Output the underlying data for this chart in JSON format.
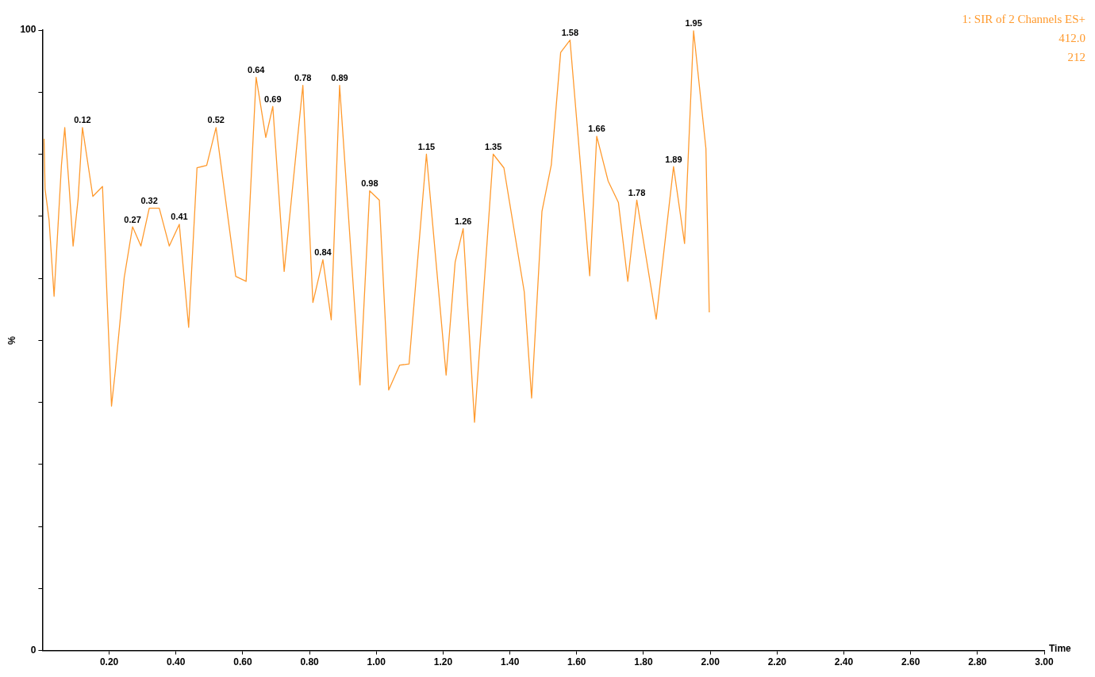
{
  "chart_data": {
    "type": "line",
    "ylabel": "%",
    "xlabel": "Time",
    "annotations": [
      "1: SIR of 2 Channels ES+",
      "412.0",
      "212",
      {
        "text": "0.12",
        "x": 0.12,
        "y": 84.3
      },
      {
        "text": "0.27",
        "x": 0.27,
        "y": 68.3
      },
      {
        "text": "0.32",
        "x": 0.32,
        "y": 71.3
      },
      {
        "text": "0.41",
        "x": 0.41,
        "y": 68.7
      },
      {
        "text": "0.52",
        "x": 0.52,
        "y": 84.3
      },
      {
        "text": "0.64",
        "x": 0.64,
        "y": 92.4
      },
      {
        "text": "0.69",
        "x": 0.69,
        "y": 87.7
      },
      {
        "text": "0.78",
        "x": 0.78,
        "y": 91.1
      },
      {
        "text": "0.84",
        "x": 0.84,
        "y": 63
      },
      {
        "text": "0.89",
        "x": 0.89,
        "y": 91.1
      },
      {
        "text": "0.98",
        "x": 0.98,
        "y": 74.1
      },
      {
        "text": "1.15",
        "x": 1.15,
        "y": 80
      },
      {
        "text": "1.26",
        "x": 1.26,
        "y": 68
      },
      {
        "text": "1.35",
        "x": 1.35,
        "y": 80
      },
      {
        "text": "1.58",
        "x": 1.58,
        "y": 98.4
      },
      {
        "text": "1.66",
        "x": 1.66,
        "y": 82.9
      },
      {
        "text": "1.78",
        "x": 1.78,
        "y": 72.6
      },
      {
        "text": "1.89",
        "x": 1.89,
        "y": 78
      },
      {
        "text": "1.95",
        "x": 1.95,
        "y": 99.9
      }
    ],
    "x": [
      0.005,
      0.008,
      0.02,
      0.035,
      0.057,
      0.067,
      0.08,
      0.092,
      0.107,
      0.12,
      0.151,
      0.18,
      0.207,
      0.218,
      0.245,
      0.27,
      0.295,
      0.32,
      0.35,
      0.38,
      0.41,
      0.438,
      0.463,
      0.492,
      0.52,
      0.579,
      0.61,
      0.64,
      0.669,
      0.69,
      0.724,
      0.78,
      0.81,
      0.84,
      0.865,
      0.89,
      0.951,
      0.98,
      1.009,
      1.037,
      1.07,
      1.098,
      1.15,
      1.209,
      1.236,
      1.26,
      1.294,
      1.35,
      1.382,
      1.443,
      1.465,
      1.496,
      1.524,
      1.552,
      1.58,
      1.639,
      1.66,
      1.694,
      1.725,
      1.753,
      1.78,
      1.838,
      1.89,
      1.923,
      1.95,
      1.987,
      1.997
    ],
    "values": [
      82.5,
      74.4,
      69.4,
      57.1,
      78.2,
      84.3,
      74.8,
      65.2,
      72.8,
      84.3,
      73.2,
      74.8,
      39.4,
      44.9,
      60.1,
      68.3,
      65.2,
      71.3,
      71.3,
      65.2,
      68.7,
      52.1,
      77.8,
      78.2,
      84.3,
      60.3,
      59.5,
      92.4,
      82.7,
      87.7,
      61.1,
      91.1,
      56.1,
      63,
      53.3,
      91.1,
      42.8,
      74.1,
      72.6,
      42,
      46,
      46.2,
      80,
      44.4,
      62.6,
      68,
      36.8,
      80,
      77.8,
      57.8,
      40.7,
      70.8,
      78.3,
      96.4,
      98.4,
      60.4,
      82.9,
      75.7,
      72.2,
      59.5,
      72.6,
      53.4,
      78,
      65.6,
      99.9,
      80.9,
      54.5
    ],
    "color": "#ff9a2e",
    "marker": "none",
    "legend": false,
    "grid": false,
    "xlim": [
      0,
      3
    ],
    "xticks": [
      {
        "value": 0.2,
        "label": "0.20"
      },
      {
        "value": 0.4,
        "label": "0.40"
      },
      {
        "value": 0.6,
        "label": "0.60"
      },
      {
        "value": 0.8,
        "label": "0.80"
      },
      {
        "value": 1,
        "label": "1.00"
      },
      {
        "value": 1.2,
        "label": "1.20"
      },
      {
        "value": 1.4,
        "label": "1.40"
      },
      {
        "value": 1.6,
        "label": "1.60"
      },
      {
        "value": 1.8,
        "label": "1.80"
      },
      {
        "value": 2,
        "label": "2.00"
      },
      {
        "value": 2.2,
        "label": "2.20"
      },
      {
        "value": 2.4,
        "label": "2.40"
      },
      {
        "value": 2.6,
        "label": "2.60"
      },
      {
        "value": 2.8,
        "label": "2.80"
      },
      {
        "value": 3,
        "label": "3.00"
      }
    ],
    "ylim": [
      0,
      100
    ],
    "yticks": [
      0,
      {
        "value": 10,
        "label": null
      },
      {
        "value": 20,
        "label": null
      },
      {
        "value": 30,
        "label": null
      },
      {
        "value": 40,
        "label": null
      },
      {
        "value": 50,
        "label": null
      },
      {
        "value": 60,
        "label": null
      },
      {
        "value": 70,
        "label": null
      },
      {
        "value": 80,
        "label": null
      },
      {
        "value": 90,
        "label": null
      },
      100
    ]
  }
}
